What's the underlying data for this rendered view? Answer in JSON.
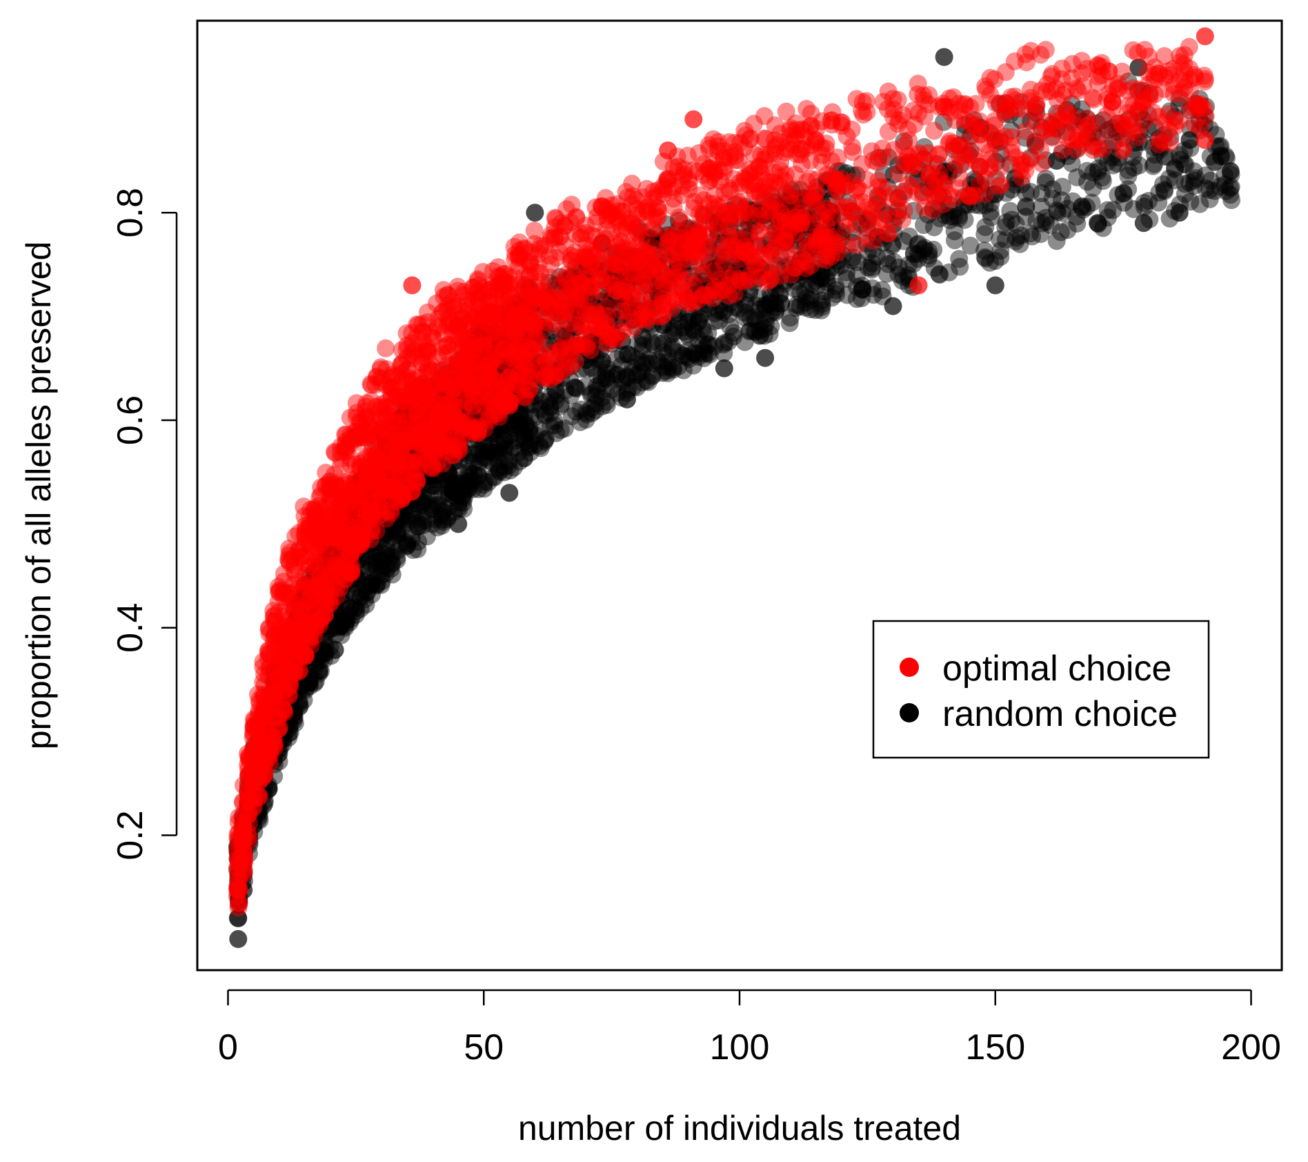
{
  "chart_data": {
    "type": "scatter",
    "title": "",
    "xlabel": "number of individuals treated",
    "ylabel": "proportion of all alleles preserved",
    "xlim": [
      -6,
      206
    ],
    "ylim": [
      0.07,
      0.985
    ],
    "xticks": [
      0,
      50,
      100,
      150,
      200
    ],
    "yticks": [
      0.2,
      0.4,
      0.6,
      0.8
    ],
    "xtick_labels": [
      "0",
      "50",
      "100",
      "150",
      "200"
    ],
    "ytick_labels": [
      "0.2",
      "0.4",
      "0.6",
      "0.8"
    ],
    "grid": false,
    "legend_position": "center-right",
    "series": [
      {
        "name": "random choice",
        "color": "#000000",
        "alpha": 0.45,
        "summary": {
          "x": [
            2,
            5,
            10,
            15,
            20,
            25,
            30,
            40,
            50,
            60,
            70,
            80,
            90,
            100,
            110,
            120,
            130,
            140,
            150,
            160,
            170,
            180,
            190,
            196
          ],
          "y_low": [
            0.12,
            0.2,
            0.27,
            0.33,
            0.37,
            0.41,
            0.44,
            0.49,
            0.53,
            0.57,
            0.6,
            0.63,
            0.65,
            0.67,
            0.69,
            0.71,
            0.72,
            0.74,
            0.75,
            0.77,
            0.78,
            0.79,
            0.8,
            0.81
          ],
          "y_high": [
            0.2,
            0.29,
            0.38,
            0.45,
            0.5,
            0.55,
            0.6,
            0.65,
            0.7,
            0.74,
            0.77,
            0.79,
            0.8,
            0.82,
            0.83,
            0.85,
            0.87,
            0.9,
            0.91,
            0.92,
            0.93,
            0.93,
            0.92,
            0.85
          ]
        },
        "points": [
          [
            2,
            0.1
          ],
          [
            2,
            0.12
          ],
          [
            45,
            0.5
          ],
          [
            55,
            0.53
          ],
          [
            60,
            0.8
          ],
          [
            78,
            0.62
          ],
          [
            97,
            0.65
          ],
          [
            105,
            0.66
          ],
          [
            130,
            0.71
          ],
          [
            140,
            0.95
          ],
          [
            150,
            0.73
          ],
          [
            162,
            0.85
          ],
          [
            170,
            0.79
          ],
          [
            178,
            0.94
          ],
          [
            179,
            0.79
          ],
          [
            186,
            0.8
          ],
          [
            188,
            0.87
          ],
          [
            196,
            0.84
          ]
        ]
      },
      {
        "name": "optimal choice",
        "color": "#ff0000",
        "alpha": 0.45,
        "summary": {
          "x": [
            2,
            5,
            10,
            15,
            20,
            25,
            30,
            40,
            50,
            60,
            70,
            80,
            90,
            100,
            110,
            120,
            130,
            140,
            150,
            158,
            164,
            191
          ],
          "y_low": [
            0.13,
            0.22,
            0.3,
            0.37,
            0.42,
            0.46,
            0.5,
            0.55,
            0.59,
            0.63,
            0.66,
            0.69,
            0.71,
            0.72,
            0.74,
            0.76,
            0.78,
            0.8,
            0.82,
            0.84,
            0.85,
            0.87
          ],
          "y_high": [
            0.22,
            0.32,
            0.46,
            0.52,
            0.57,
            0.62,
            0.67,
            0.72,
            0.75,
            0.79,
            0.82,
            0.84,
            0.87,
            0.89,
            0.9,
            0.92,
            0.93,
            0.94,
            0.94,
            0.97,
            0.95,
            0.97
          ]
        },
        "points": [
          [
            36,
            0.73
          ],
          [
            86,
            0.86
          ],
          [
            91,
            0.89
          ],
          [
            135,
            0.73
          ],
          [
            191,
            0.97
          ],
          [
            191,
            0.87
          ]
        ]
      }
    ]
  },
  "legend": {
    "items": [
      {
        "label": "optimal choice",
        "color": "#ff0000"
      },
      {
        "label": "random choice",
        "color": "#000000"
      }
    ]
  }
}
